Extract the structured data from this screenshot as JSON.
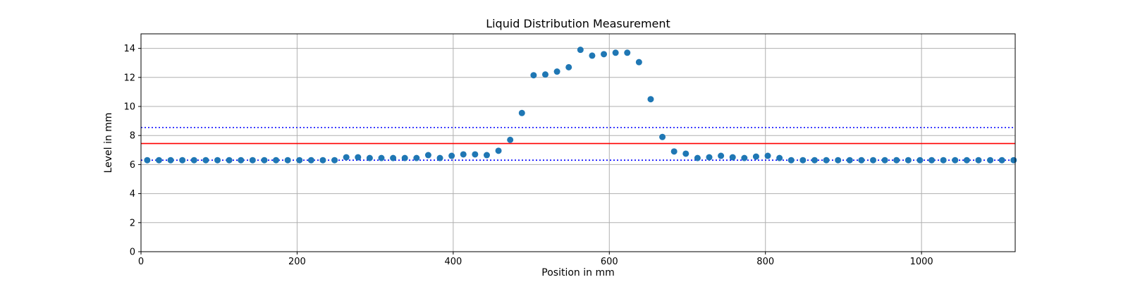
{
  "chart_data": {
    "type": "scatter",
    "title": "Liquid Distribution Measurement",
    "xlabel": "Position in mm",
    "ylabel": "Level in mm",
    "xlim": [
      0,
      1120
    ],
    "ylim": [
      0,
      15
    ],
    "xticks": [
      0,
      200,
      400,
      600,
      800,
      1000
    ],
    "yticks": [
      0,
      2,
      4,
      6,
      8,
      10,
      12,
      14
    ],
    "grid": true,
    "marker_color": "#1f77b4",
    "mean_line": {
      "y": 7.45,
      "color": "#ff0000",
      "style": "solid"
    },
    "band_lines": [
      {
        "y": 8.55,
        "color": "#0000ff",
        "style": "dotted"
      },
      {
        "y": 6.3,
        "color": "#0000ff",
        "style": "dotted"
      }
    ],
    "points": [
      [
        8,
        6.3
      ],
      [
        23,
        6.3
      ],
      [
        38,
        6.3
      ],
      [
        53,
        6.3
      ],
      [
        68,
        6.3
      ],
      [
        83,
        6.3
      ],
      [
        98,
        6.3
      ],
      [
        113,
        6.3
      ],
      [
        128,
        6.3
      ],
      [
        143,
        6.3
      ],
      [
        158,
        6.3
      ],
      [
        173,
        6.3
      ],
      [
        188,
        6.3
      ],
      [
        203,
        6.3
      ],
      [
        218,
        6.3
      ],
      [
        233,
        6.3
      ],
      [
        248,
        6.3
      ],
      [
        263,
        6.5
      ],
      [
        278,
        6.5
      ],
      [
        293,
        6.45
      ],
      [
        308,
        6.45
      ],
      [
        323,
        6.45
      ],
      [
        338,
        6.45
      ],
      [
        353,
        6.45
      ],
      [
        368,
        6.65
      ],
      [
        383,
        6.45
      ],
      [
        398,
        6.6
      ],
      [
        413,
        6.7
      ],
      [
        428,
        6.7
      ],
      [
        443,
        6.65
      ],
      [
        458,
        6.95
      ],
      [
        473,
        7.7
      ],
      [
        488,
        9.55
      ],
      [
        503,
        12.15
      ],
      [
        518,
        12.2
      ],
      [
        533,
        12.4
      ],
      [
        548,
        12.7
      ],
      [
        563,
        13.9
      ],
      [
        578,
        13.5
      ],
      [
        593,
        13.6
      ],
      [
        608,
        13.7
      ],
      [
        623,
        13.7
      ],
      [
        638,
        13.05
      ],
      [
        653,
        10.5
      ],
      [
        668,
        7.9
      ],
      [
        683,
        6.9
      ],
      [
        698,
        6.75
      ],
      [
        713,
        6.45
      ],
      [
        728,
        6.5
      ],
      [
        743,
        6.6
      ],
      [
        758,
        6.5
      ],
      [
        773,
        6.45
      ],
      [
        788,
        6.55
      ],
      [
        803,
        6.6
      ],
      [
        818,
        6.45
      ],
      [
        833,
        6.3
      ],
      [
        848,
        6.3
      ],
      [
        863,
        6.3
      ],
      [
        878,
        6.3
      ],
      [
        893,
        6.3
      ],
      [
        908,
        6.3
      ],
      [
        923,
        6.3
      ],
      [
        938,
        6.3
      ],
      [
        953,
        6.3
      ],
      [
        968,
        6.3
      ],
      [
        983,
        6.3
      ],
      [
        998,
        6.3
      ],
      [
        1013,
        6.3
      ],
      [
        1028,
        6.3
      ],
      [
        1043,
        6.3
      ],
      [
        1058,
        6.3
      ],
      [
        1073,
        6.3
      ],
      [
        1088,
        6.3
      ],
      [
        1103,
        6.3
      ],
      [
        1118,
        6.3
      ]
    ]
  }
}
